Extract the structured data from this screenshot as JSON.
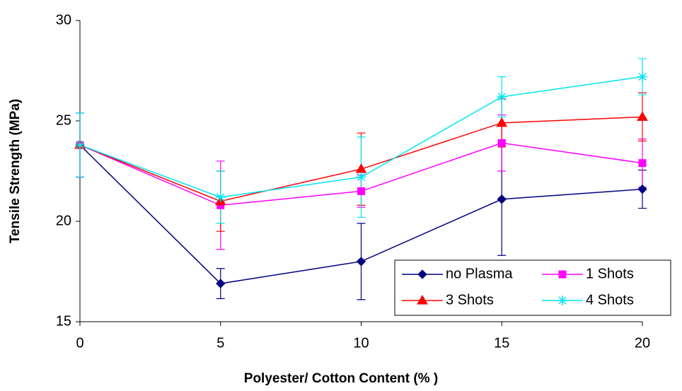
{
  "chart_data": {
    "type": "line",
    "xlabel": "Polyester/ Cotton Content (% )",
    "ylabel": "Tensile Strength (MPa)",
    "x": [
      0,
      5,
      10,
      15,
      20
    ],
    "xlim": [
      0,
      20
    ],
    "xticks": [
      0,
      5,
      10,
      15,
      20
    ],
    "ylim": [
      15,
      30
    ],
    "yticks": [
      15,
      20,
      25,
      30
    ],
    "legend": "lower right",
    "series": [
      {
        "name": "no Plasma",
        "color": "#000080",
        "marker": "diamond",
        "values": [
          23.8,
          16.9,
          18.0,
          21.1,
          21.6
        ],
        "errors": [
          1.6,
          0.75,
          1.9,
          2.8,
          0.95
        ]
      },
      {
        "name": "1 Shots",
        "color": "#ff00ff",
        "marker": "square",
        "values": [
          23.8,
          20.8,
          21.5,
          23.9,
          22.9
        ],
        "errors": [
          1.6,
          2.2,
          0.8,
          1.4,
          1.2
        ]
      },
      {
        "name": "3 Shots",
        "color": "#ff0000",
        "marker": "triangle",
        "values": [
          23.8,
          21.0,
          22.6,
          24.9,
          25.2
        ],
        "errors": [
          1.6,
          1.5,
          1.8,
          1.2,
          1.2
        ]
      },
      {
        "name": "4 Shots",
        "color": "#00e5f0",
        "marker": "star",
        "values": [
          23.8,
          21.2,
          22.2,
          26.2,
          27.2
        ],
        "errors": [
          1.6,
          1.3,
          2.0,
          1.0,
          0.9
        ]
      }
    ]
  }
}
